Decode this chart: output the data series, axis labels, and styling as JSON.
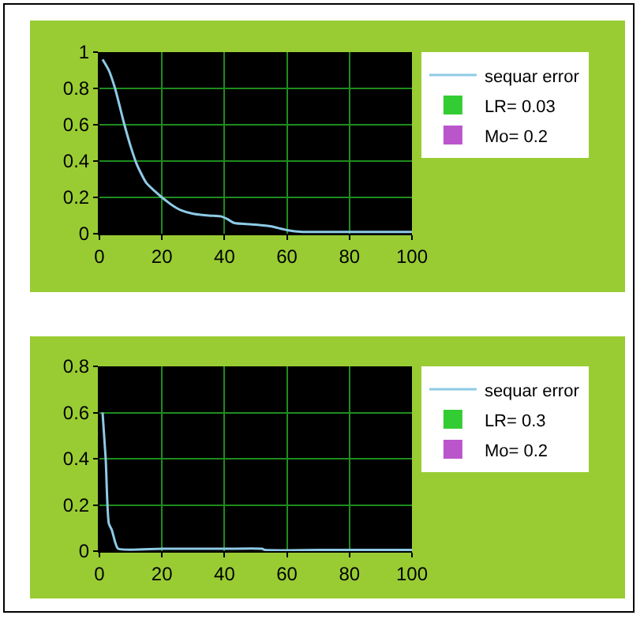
{
  "chart_data": [
    {
      "type": "line",
      "x": [
        1,
        3,
        5,
        8,
        10,
        12,
        15,
        18,
        20,
        23,
        26,
        30,
        35,
        39,
        41,
        43,
        50,
        55,
        60,
        65,
        70,
        80,
        90,
        100
      ],
      "series": [
        {
          "name": "sequar error",
          "color": "#8ecae6",
          "values": [
            0.96,
            0.9,
            0.8,
            0.6,
            0.48,
            0.38,
            0.28,
            0.23,
            0.2,
            0.16,
            0.13,
            0.11,
            0.1,
            0.095,
            0.08,
            0.06,
            0.05,
            0.04,
            0.02,
            0.01,
            0.01,
            0.01,
            0.01,
            0.01
          ]
        },
        {
          "name": "LR= 0.03",
          "type": "bar",
          "color": "#33cc33",
          "values": [
            null,
            null,
            null,
            null,
            null,
            null,
            null,
            null,
            null,
            null,
            null,
            null,
            null,
            null,
            null,
            null,
            null,
            null,
            null,
            null,
            null,
            null,
            null,
            null
          ]
        },
        {
          "name": "Mo= 0.2",
          "type": "bar",
          "color": "#bb55cc",
          "values": [
            null,
            null,
            null,
            null,
            null,
            null,
            null,
            null,
            null,
            null,
            null,
            null,
            null,
            null,
            null,
            null,
            null,
            null,
            null,
            null,
            null,
            null,
            null,
            null
          ]
        }
      ],
      "xlim": [
        0,
        100
      ],
      "xticks": [
        0,
        20,
        40,
        60,
        80,
        100
      ],
      "ylim": [
        0,
        1
      ],
      "yticks": [
        0,
        0.2,
        0.4,
        0.6,
        0.8,
        1
      ],
      "grid": true,
      "legend": "top right"
    },
    {
      "type": "line",
      "x": [
        1,
        2,
        3,
        4,
        5,
        6,
        20,
        40,
        52,
        53,
        70,
        100
      ],
      "series": [
        {
          "name": "sequar error",
          "color": "#8ecae6",
          "values": [
            0.6,
            0.4,
            0.12,
            0.09,
            0.04,
            0.01,
            0.01,
            0.01,
            0.01,
            0.005,
            0.005,
            0.005
          ]
        },
        {
          "name": "LR= 0.3",
          "type": "bar",
          "color": "#33cc33",
          "values": [
            null,
            null,
            null,
            null,
            null,
            null,
            null,
            null,
            null,
            null,
            null,
            null
          ]
        },
        {
          "name": "Mo= 0.2",
          "type": "bar",
          "color": "#bb55cc",
          "values": [
            null,
            null,
            null,
            null,
            null,
            null,
            null,
            null,
            null,
            null,
            null,
            null
          ]
        }
      ],
      "xlim": [
        0,
        100
      ],
      "xticks": [
        0,
        20,
        40,
        60,
        80,
        100
      ],
      "ylim": [
        0,
        0.8
      ],
      "yticks": [
        0,
        0.2,
        0.4,
        0.6,
        0.8
      ],
      "grid": true,
      "legend": "top right"
    }
  ]
}
